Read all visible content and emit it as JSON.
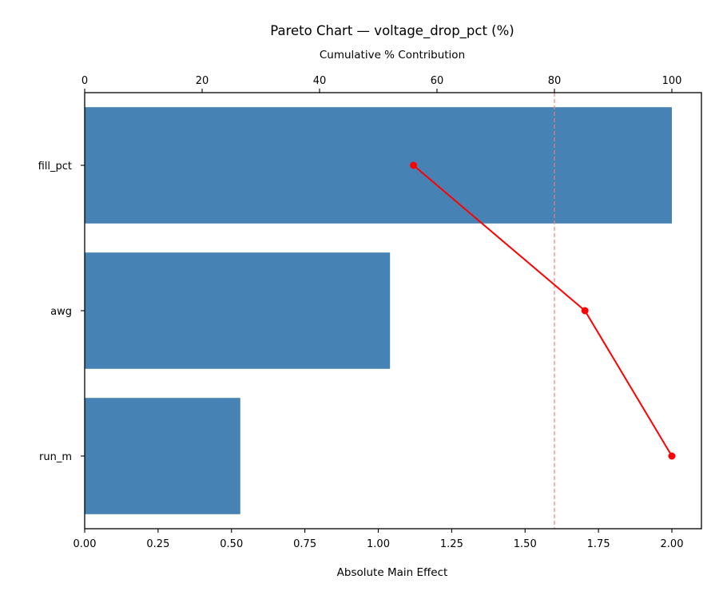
{
  "chart_data": {
    "type": "bar",
    "orientation": "horizontal",
    "title": "Pareto Chart — voltage_drop_pct (%)",
    "xlabel": "Absolute Main Effect",
    "x2label": "Cumulative % Contribution",
    "ylabel": "",
    "categories": [
      "fill_pct",
      "awg",
      "run_m"
    ],
    "series": [
      {
        "name": "Absolute Main Effect",
        "type": "bar",
        "axis": "bottom",
        "color": "#4682b4",
        "values": [
          2.0,
          1.04,
          0.53
        ]
      },
      {
        "name": "Cumulative % Contribution",
        "type": "line",
        "axis": "top",
        "color": "#ff0000",
        "marker": "circle",
        "values": [
          56.0,
          85.2,
          100.0
        ]
      }
    ],
    "xlim": [
      0,
      2.1
    ],
    "x2lim": [
      0,
      105
    ],
    "xticks": [
      "0.00",
      "0.25",
      "0.50",
      "0.75",
      "1.00",
      "1.25",
      "1.50",
      "1.75",
      "2.00"
    ],
    "x2ticks": [
      "0",
      "20",
      "40",
      "60",
      "80",
      "100"
    ],
    "reference_line": {
      "axis": "top",
      "value": 80,
      "style": "dashed",
      "color": "#f08080"
    },
    "grid": false,
    "legend": null
  }
}
